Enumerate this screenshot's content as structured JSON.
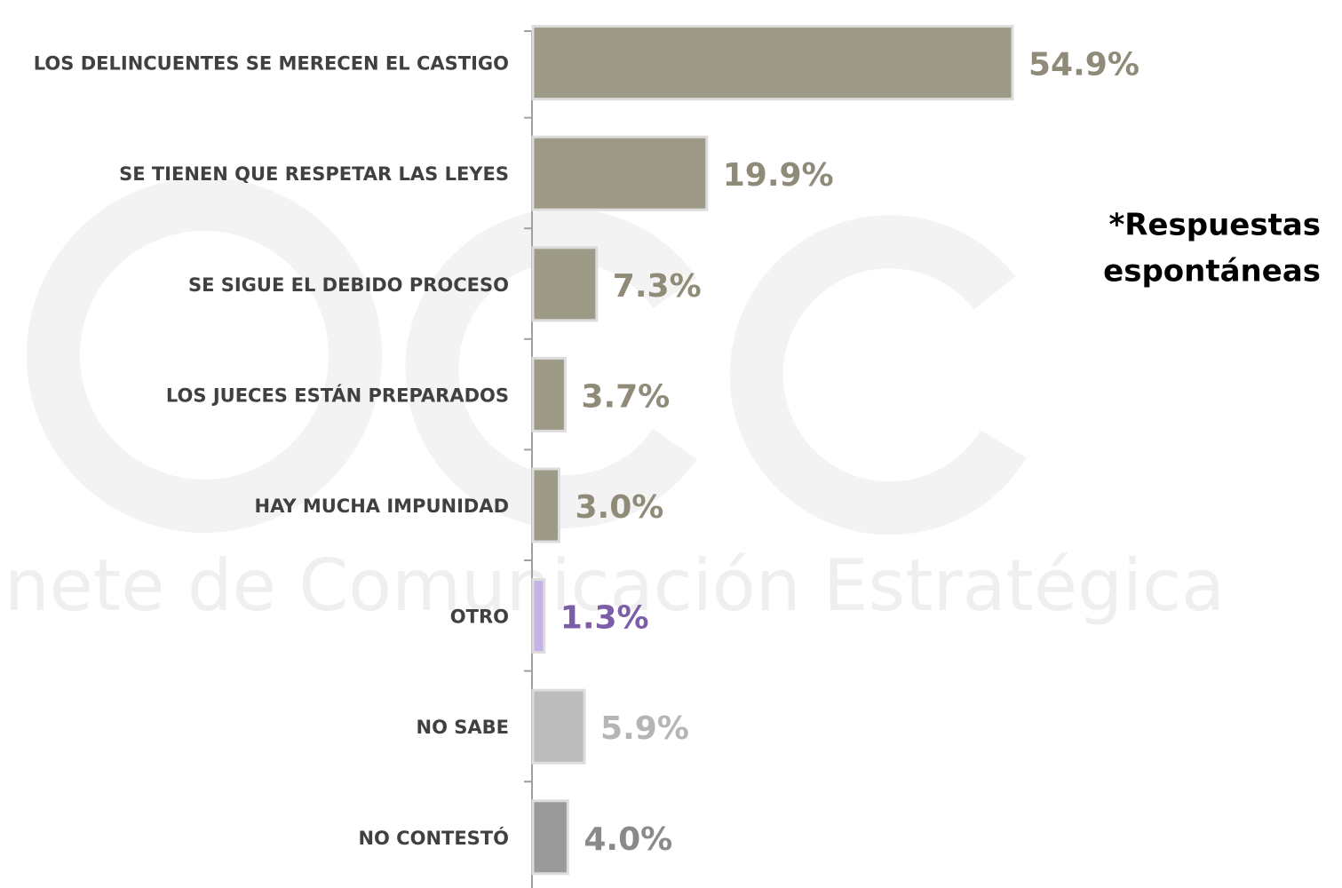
{
  "chart_data": {
    "type": "barh",
    "categories": [
      "LOS DELINCUENTES SE MERECEN EL CASTIGO",
      "SE TIENEN QUE RESPETAR LAS LEYES",
      "SE SIGUE EL DEBIDO PROCESO",
      "LOS JUECES ESTÁN PREPARADOS",
      "HAY MUCHA IMPUNIDAD",
      "OTRO",
      "NO SABE",
      "NO CONTESTÓ"
    ],
    "values": [
      54.9,
      19.9,
      7.3,
      3.7,
      3.0,
      1.3,
      5.9,
      4.0
    ],
    "value_labels": [
      "54.9%",
      "19.9%",
      "7.3%",
      "3.7%",
      "3.0%",
      "1.3%",
      "5.9%",
      "4.0%"
    ],
    "colors": [
      "#9e9a88",
      "#9e9a88",
      "#9e9a88",
      "#9e9a88",
      "#9e9a88",
      "#c4b2e6",
      "#bcbcbc",
      "#9a9a9a"
    ],
    "label_colors": [
      "#8f8b78",
      "#8f8b78",
      "#8f8b78",
      "#8f8b78",
      "#8f8b78",
      "#7b5ea7",
      "#b5b5b5",
      "#8a8a8a"
    ],
    "annotation": [
      "*Respuestas",
      "espontáneas"
    ],
    "watermark": "Gabinete de Comunicación Estratégica"
  }
}
